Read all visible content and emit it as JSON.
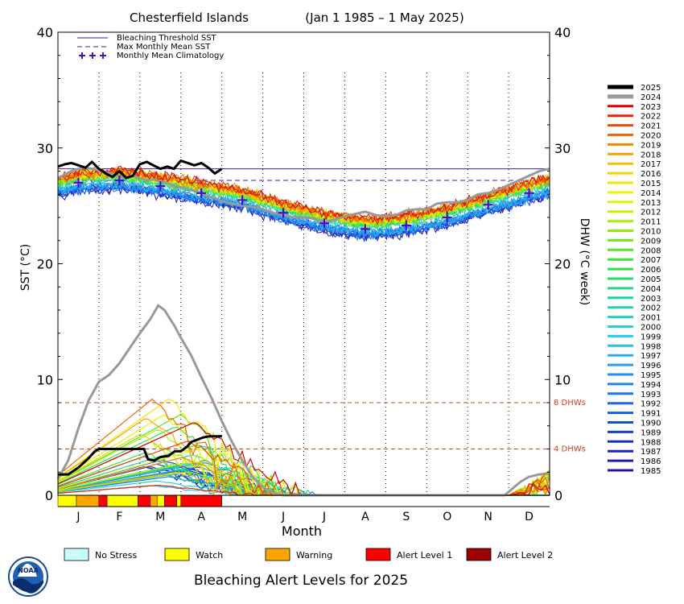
{
  "chart_data": {
    "type": "line",
    "title": "Chesterfield Islands",
    "date_range": "(Jan 1 1985 – 1 May 2025)",
    "xlabel": "Month",
    "ylabel_left": "SST (°C)",
    "ylabel_right": "DHW (°C week)",
    "months": [
      "J",
      "F",
      "M",
      "A",
      "M",
      "J",
      "J",
      "A",
      "S",
      "O",
      "N",
      "D"
    ],
    "ylim_left": [
      0,
      40
    ],
    "ylim_right": [
      0,
      40
    ],
    "yticks": [
      "0",
      "10",
      "20",
      "30",
      "40"
    ],
    "bleaching_threshold_sst": 28.2,
    "max_monthly_mean_sst": 27.2,
    "dhw_thresholds": [
      {
        "value": 8,
        "label": "8 DHWs"
      },
      {
        "value": 4,
        "label": "4 DHWs"
      }
    ],
    "legend_top": [
      {
        "label": "Bleaching Threshold SST",
        "style": "solid",
        "color": "#3b1ea8"
      },
      {
        "label": "Max Monthly Mean SST",
        "style": "dashed",
        "color": "#3b1ea8"
      },
      {
        "label": "Monthly Mean Climatology",
        "style": "plus",
        "color": "#4b0fc8"
      }
    ],
    "climatology": [
      {
        "month": 0.5,
        "sst": 27.0
      },
      {
        "month": 1.5,
        "sst": 27.2
      },
      {
        "month": 2.5,
        "sst": 26.7
      },
      {
        "month": 3.5,
        "sst": 26.1
      },
      {
        "month": 4.5,
        "sst": 25.5
      },
      {
        "month": 5.5,
        "sst": 24.4
      },
      {
        "month": 6.5,
        "sst": 23.5
      },
      {
        "month": 7.5,
        "sst": 23.0
      },
      {
        "month": 8.5,
        "sst": 23.3
      },
      {
        "month": 9.5,
        "sst": 24.0
      },
      {
        "month": 10.5,
        "sst": 25.1
      },
      {
        "month": 11.5,
        "sst": 26.1
      }
    ],
    "years": [
      "2025",
      "2024",
      "2023",
      "2022",
      "2021",
      "2020",
      "2019",
      "2018",
      "2017",
      "2016",
      "2015",
      "2014",
      "2013",
      "2012",
      "2011",
      "2010",
      "2009",
      "2008",
      "2007",
      "2006",
      "2005",
      "2004",
      "2003",
      "2002",
      "2001",
      "2000",
      "1999",
      "1998",
      "1997",
      "1996",
      "1995",
      "1994",
      "1993",
      "1992",
      "1991",
      "1990",
      "1989",
      "1988",
      "1987",
      "1986",
      "1985"
    ],
    "year_colors": [
      "#000000",
      "#999999",
      "#dd0000",
      "#e42800",
      "#eb4a00",
      "#f06a00",
      "#f38800",
      "#f6a300",
      "#f7bd00",
      "#f6d300",
      "#f3e600",
      "#eef400",
      "#dcf700",
      "#c4f500",
      "#a9f200",
      "#8cee00",
      "#6eeb10",
      "#52e823",
      "#3ee43a",
      "#2fe152",
      "#25de6a",
      "#1fdb83",
      "#1dd89b",
      "#1fd5b1",
      "#23d2c4",
      "#27cfd5",
      "#29c9e2",
      "#29bdea",
      "#28aeef",
      "#269ff2",
      "#2490f3",
      "#2182f3",
      "#1e74f2",
      "#1b66ee",
      "#1858e8",
      "#164ae0",
      "#153dd6",
      "#1630cb",
      "#1a24c0",
      "#2019b5",
      "#280eaa"
    ],
    "sst_2025": [
      [
        0.0,
        28.4
      ],
      [
        0.17,
        28.6
      ],
      [
        0.33,
        28.7
      ],
      [
        0.5,
        28.5
      ],
      [
        0.67,
        28.3
      ],
      [
        0.83,
        28.8
      ],
      [
        1.0,
        28.2
      ],
      [
        1.17,
        27.8
      ],
      [
        1.33,
        27.5
      ],
      [
        1.5,
        28.0
      ],
      [
        1.67,
        27.4
      ],
      [
        1.83,
        27.6
      ],
      [
        2.0,
        28.6
      ],
      [
        2.17,
        28.8
      ],
      [
        2.33,
        28.5
      ],
      [
        2.5,
        28.2
      ],
      [
        2.67,
        28.4
      ],
      [
        2.83,
        28.2
      ],
      [
        3.0,
        28.9
      ],
      [
        3.17,
        28.7
      ],
      [
        3.33,
        28.5
      ],
      [
        3.5,
        28.7
      ],
      [
        3.67,
        28.3
      ],
      [
        3.83,
        27.8
      ],
      [
        4.0,
        28.2
      ]
    ],
    "sst_2024": [
      [
        0.0,
        27.4
      ],
      [
        0.17,
        27.7
      ],
      [
        0.33,
        28.0
      ],
      [
        0.5,
        28.2
      ],
      [
        0.67,
        28.3
      ],
      [
        0.83,
        28.2
      ],
      [
        1.0,
        28.1
      ],
      [
        1.17,
        27.9
      ],
      [
        1.33,
        27.8
      ],
      [
        1.5,
        27.5
      ],
      [
        1.67,
        27.5
      ],
      [
        1.83,
        27.6
      ],
      [
        2.0,
        27.4
      ],
      [
        2.17,
        27.2
      ],
      [
        2.33,
        27.3
      ],
      [
        2.5,
        27.1
      ],
      [
        2.67,
        27.0
      ],
      [
        2.83,
        26.7
      ],
      [
        3.0,
        26.6
      ],
      [
        3.17,
        26.4
      ],
      [
        3.33,
        26.3
      ],
      [
        3.5,
        26.1
      ],
      [
        3.67,
        25.8
      ],
      [
        3.83,
        25.7
      ],
      [
        4.0,
        25.4
      ],
      [
        4.25,
        25.2
      ],
      [
        4.5,
        25.0
      ],
      [
        4.75,
        24.9
      ],
      [
        5.0,
        24.7
      ],
      [
        5.25,
        24.4
      ],
      [
        5.5,
        24.2
      ],
      [
        5.75,
        24.0
      ],
      [
        6.0,
        24.0
      ],
      [
        6.25,
        23.9
      ],
      [
        6.5,
        23.6
      ],
      [
        6.75,
        23.8
      ],
      [
        7.0,
        24.1
      ],
      [
        7.25,
        24.3
      ],
      [
        7.5,
        24.5
      ],
      [
        7.75,
        24.2
      ],
      [
        8.0,
        24.1
      ],
      [
        8.25,
        24.2
      ],
      [
        8.5,
        24.6
      ],
      [
        8.75,
        24.7
      ],
      [
        9.0,
        24.7
      ],
      [
        9.25,
        25.2
      ],
      [
        9.5,
        25.3
      ],
      [
        9.75,
        25.3
      ],
      [
        10.0,
        25.5
      ],
      [
        10.25,
        26.0
      ],
      [
        10.5,
        26.1
      ],
      [
        10.75,
        26.4
      ],
      [
        11.0,
        26.8
      ],
      [
        11.25,
        27.2
      ],
      [
        11.5,
        27.6
      ],
      [
        11.75,
        28.0
      ],
      [
        12.0,
        28.2
      ]
    ],
    "dhw_2025": [
      [
        0.0,
        1.8
      ],
      [
        0.25,
        1.8
      ],
      [
        0.5,
        2.4
      ],
      [
        0.75,
        3.2
      ],
      [
        0.9,
        3.8
      ],
      [
        1.0,
        4.0
      ],
      [
        1.25,
        4.0
      ],
      [
        1.5,
        4.0
      ],
      [
        1.75,
        4.0
      ],
      [
        2.0,
        4.0
      ],
      [
        2.1,
        4.0
      ],
      [
        2.2,
        3.1
      ],
      [
        2.35,
        3.0
      ],
      [
        2.5,
        3.3
      ],
      [
        2.7,
        3.4
      ],
      [
        2.85,
        3.8
      ],
      [
        3.0,
        3.8
      ],
      [
        3.15,
        4.2
      ],
      [
        3.25,
        4.6
      ],
      [
        3.4,
        4.8
      ],
      [
        3.55,
        5.0
      ],
      [
        3.7,
        5.1
      ],
      [
        4.0,
        5.1
      ]
    ],
    "dhw_2024": [
      [
        0.0,
        1.4
      ],
      [
        0.25,
        3.0
      ],
      [
        0.5,
        5.8
      ],
      [
        0.75,
        8.2
      ],
      [
        1.0,
        9.8
      ],
      [
        1.25,
        10.4
      ],
      [
        1.5,
        11.4
      ],
      [
        1.75,
        12.7
      ],
      [
        2.0,
        14.0
      ],
      [
        2.25,
        15.2
      ],
      [
        2.45,
        16.4
      ],
      [
        2.6,
        16.0
      ],
      [
        2.85,
        14.6
      ],
      [
        3.0,
        13.6
      ],
      [
        3.25,
        12.1
      ],
      [
        3.5,
        10.2
      ],
      [
        3.75,
        8.4
      ],
      [
        4.0,
        6.4
      ],
      [
        4.25,
        4.6
      ],
      [
        4.5,
        3.0
      ],
      [
        4.75,
        1.6
      ],
      [
        5.0,
        0.7
      ],
      [
        5.25,
        0.2
      ],
      [
        5.5,
        0.0
      ],
      [
        10.6,
        0.0
      ],
      [
        10.9,
        0.0
      ],
      [
        11.1,
        0.6
      ],
      [
        11.3,
        1.2
      ],
      [
        11.5,
        1.6
      ],
      [
        11.75,
        1.8
      ],
      [
        12.0,
        1.9
      ]
    ],
    "alert_title": "Bleaching Alert Levels for 2025",
    "alert_legend": [
      {
        "label": "No Stress",
        "color": "#c8ffff"
      },
      {
        "label": "Watch",
        "color": "#ffff00"
      },
      {
        "label": "Warning",
        "color": "#ffa500"
      },
      {
        "label": "Alert Level 1",
        "color": "#ff0000"
      },
      {
        "label": "Alert Level 2",
        "color": "#9c0000"
      }
    ],
    "alert_bar_2025": [
      {
        "start": 0.0,
        "end": 0.45,
        "level": "Watch"
      },
      {
        "start": 0.45,
        "end": 1.0,
        "level": "Warning"
      },
      {
        "start": 1.0,
        "end": 1.2,
        "level": "Alert Level 1"
      },
      {
        "start": 1.2,
        "end": 1.95,
        "level": "Watch"
      },
      {
        "start": 1.95,
        "end": 2.25,
        "level": "Alert Level 1"
      },
      {
        "start": 2.25,
        "end": 2.42,
        "level": "Warning"
      },
      {
        "start": 2.42,
        "end": 2.6,
        "level": "Watch"
      },
      {
        "start": 2.6,
        "end": 2.9,
        "level": "Alert Level 1"
      },
      {
        "start": 2.9,
        "end": 3.0,
        "level": "Watch"
      },
      {
        "start": 3.0,
        "end": 4.0,
        "level": "Alert Level 1"
      }
    ],
    "grid": "vertical-dotted"
  },
  "logo_text": "NOAA"
}
